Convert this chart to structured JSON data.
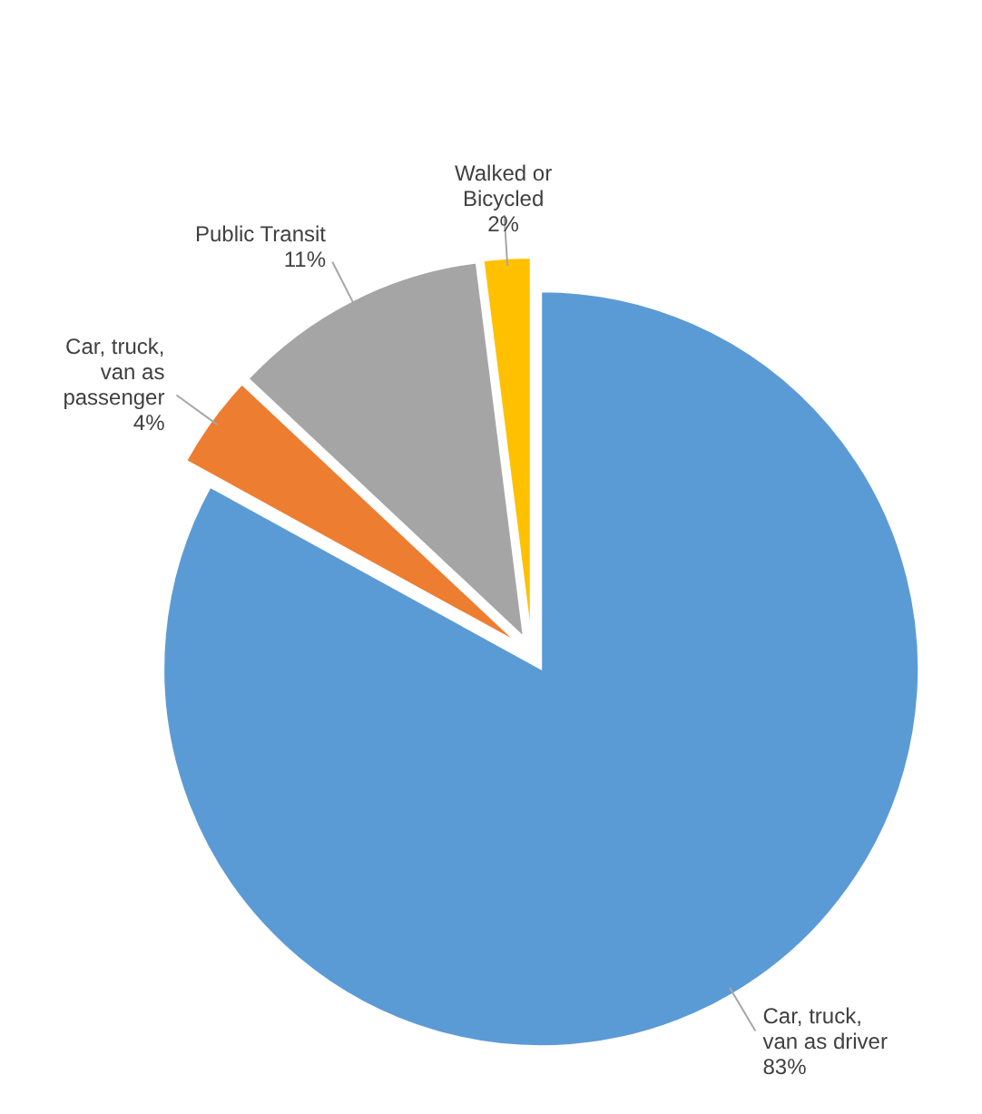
{
  "chart_data": {
    "type": "pie",
    "categories": [
      "Car, truck, van as driver",
      "Car, truck, van as passenger",
      "Public Transit",
      "Walked or Bicycled"
    ],
    "values": [
      83,
      4,
      11,
      2
    ],
    "colors": [
      "#5b9bd5",
      "#ed7d31",
      "#a5a5a5",
      "#ffc000"
    ],
    "value_labels": [
      "83%",
      "4%",
      "11%",
      "2%"
    ]
  }
}
